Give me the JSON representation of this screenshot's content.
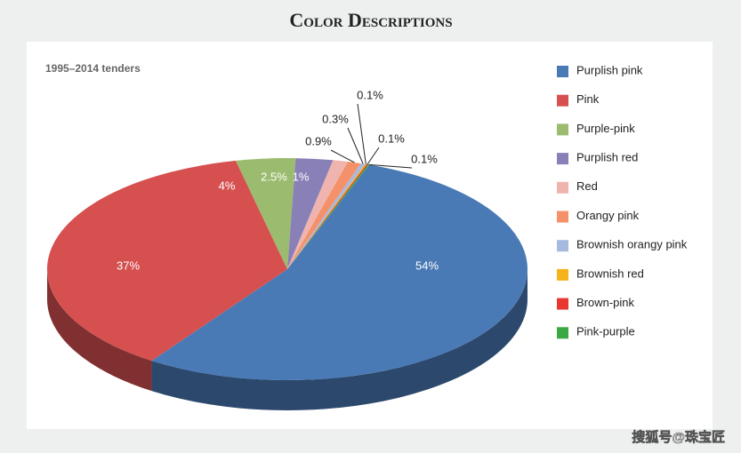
{
  "chart_data": {
    "type": "pie3d",
    "title": "Color Descriptions",
    "subtitle": "1995–2014 tenders",
    "categories": [
      "Purplish pink",
      "Pink",
      "Purple-pink",
      "Purplish red",
      "Red",
      "Orangy pink",
      "Brownish orangy pink",
      "Brownish red",
      "Brown-pink",
      "Pink-purple"
    ],
    "values": [
      54,
      37,
      4,
      2.5,
      1,
      0.9,
      0.3,
      0.1,
      0.1,
      0.1
    ],
    "value_labels": [
      "54%",
      "37%",
      "4%",
      "2.5%",
      "1%",
      "0.9%",
      "0.3%",
      "0.1%",
      "0.1%",
      "0.1%"
    ],
    "colors": [
      "#4a7ab5",
      "#d65050",
      "#9bbb6e",
      "#8a80b8",
      "#f0b4ae",
      "#f4916a",
      "#a7b9df",
      "#f5b41b",
      "#e8372f",
      "#3aa843"
    ],
    "watermark": "搜狐号@珠宝匠"
  }
}
